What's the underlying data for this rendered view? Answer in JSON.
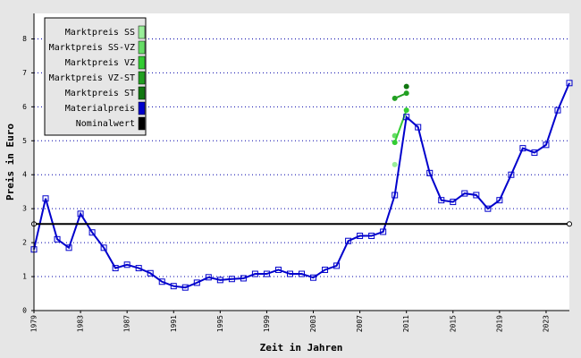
{
  "chart_data": {
    "type": "line",
    "x_label": "Zeit in Jahren",
    "y_label": "Preis in Euro",
    "xlim": [
      1979,
      2025
    ],
    "ylim": [
      0,
      8.75
    ],
    "xticks": [
      1979,
      1983,
      1987,
      1991,
      1995,
      1999,
      2003,
      2007,
      2011,
      2015,
      2019,
      2023
    ],
    "yticks": [
      0,
      1,
      2,
      3,
      4,
      5,
      6,
      7,
      8
    ],
    "grid": true,
    "legend": "upper left",
    "series": [
      {
        "name": "Marktpreis SS",
        "color": "#99ee99",
        "x": [
          2010
        ],
        "values": [
          4.3
        ]
      },
      {
        "name": "Marktpreis SS-VZ",
        "color": "#66dd66",
        "x": [
          2010
        ],
        "values": [
          5.15
        ]
      },
      {
        "name": "Marktpreis VZ",
        "color": "#33cc33",
        "x": [
          2010,
          2011
        ],
        "values": [
          4.95,
          5.9
        ]
      },
      {
        "name": "Marktpreis VZ-ST",
        "color": "#22a022",
        "x": [
          2010,
          2011
        ],
        "values": [
          6.25,
          6.4
        ]
      },
      {
        "name": "Marktpreis ST",
        "color": "#117711",
        "x": [
          2011
        ],
        "values": [
          6.6
        ]
      },
      {
        "name": "Materialpreis",
        "color": "#0000cc",
        "x": [
          1979,
          1980,
          1981,
          1982,
          1983,
          1984,
          1985,
          1986,
          1987,
          1988,
          1989,
          1990,
          1991,
          1992,
          1993,
          1994,
          1995,
          1996,
          1997,
          1998,
          1999,
          2000,
          2001,
          2002,
          2003,
          2004,
          2005,
          2006,
          2007,
          2008,
          2009,
          2010,
          2011,
          2012,
          2013,
          2014,
          2015,
          2016,
          2017,
          2018,
          2019,
          2020,
          2021,
          2022,
          2023,
          2024,
          2025
        ],
        "values": [
          1.8,
          3.3,
          2.1,
          1.85,
          2.85,
          2.3,
          1.85,
          1.25,
          1.35,
          1.25,
          1.1,
          0.85,
          0.72,
          0.68,
          0.82,
          0.98,
          0.9,
          0.93,
          0.95,
          1.08,
          1.08,
          1.2,
          1.08,
          1.08,
          0.97,
          1.2,
          1.32,
          2.05,
          2.2,
          2.2,
          2.32,
          3.4,
          5.7,
          5.4,
          4.05,
          3.25,
          3.2,
          3.45,
          3.4,
          3.0,
          3.25,
          4.0,
          4.78,
          4.65,
          4.88,
          5.9,
          6.7
        ]
      },
      {
        "name": "Nominalwert",
        "color": "#000000",
        "x": [
          1979,
          2025
        ],
        "values": [
          2.55,
          2.55
        ]
      }
    ]
  }
}
